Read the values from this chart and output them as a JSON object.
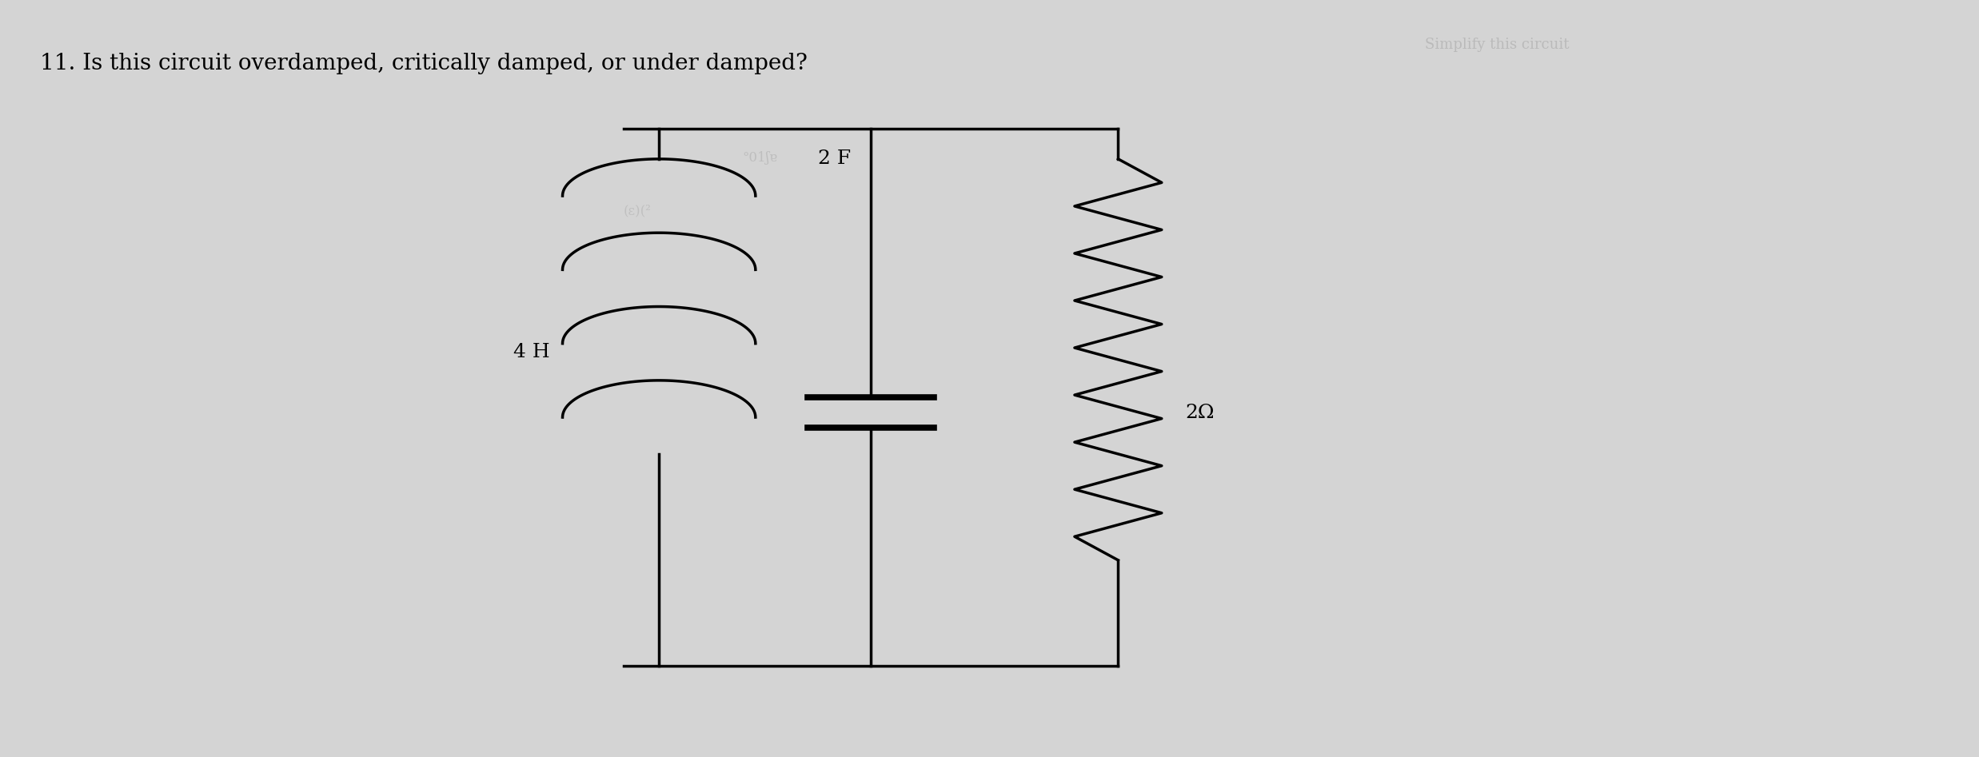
{
  "title": "11. Is this circuit overdamped, critically damped, or under damped?",
  "title_fontsize": 20,
  "bg_color": "#d4d4d4",
  "circuit": {
    "label_inductor": "4 H",
    "label_capacitor": "2 F",
    "label_resistor": "2Ω"
  }
}
